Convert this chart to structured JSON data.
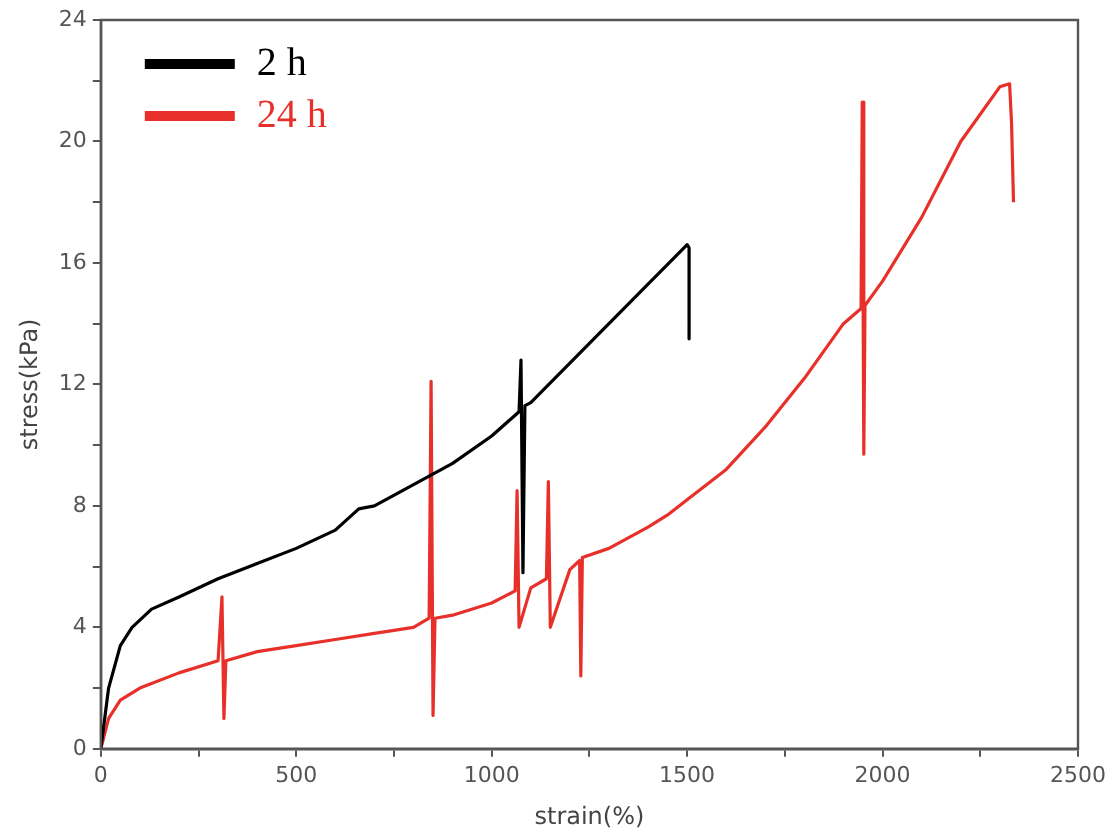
{
  "chart_data": {
    "type": "line",
    "xlabel": "strain(%)",
    "ylabel": "stress(kPa)",
    "xlim": [
      0,
      2500
    ],
    "ylim": [
      0,
      24
    ],
    "xticks": [
      0,
      {
        "value": 250,
        "label": null
      },
      500,
      {
        "value": 750,
        "label": null
      },
      1000,
      {
        "value": 1250,
        "label": null
      },
      1500,
      {
        "value": 1750,
        "label": null
      },
      2000,
      {
        "value": 2250,
        "label": null
      },
      2500
    ],
    "yticks": [
      0,
      {
        "value": 2,
        "label": null
      },
      4,
      {
        "value": 6,
        "label": null
      },
      8,
      {
        "value": 10,
        "label": null
      },
      12,
      {
        "value": 14,
        "label": null
      },
      16,
      {
        "value": 18,
        "label": null
      },
      20,
      {
        "value": 22,
        "label": null
      },
      24
    ],
    "grid": false,
    "legend": "top left",
    "marker": "none",
    "line_style": "solid",
    "series": [
      {
        "name": "2 h",
        "color": "#000000",
        "x": [
          0,
          20,
          50,
          80,
          130,
          200,
          300,
          400,
          500,
          600,
          660,
          700,
          800,
          900,
          1000,
          1070,
          1075,
          1080,
          1085,
          1100,
          1200,
          1300,
          1400,
          1500,
          1505,
          1505
        ],
        "values": [
          0,
          2,
          3.4,
          4.0,
          4.6,
          5.0,
          5.6,
          6.1,
          6.6,
          7.2,
          7.9,
          8.0,
          8.7,
          9.4,
          10.3,
          11.1,
          12.8,
          5.8,
          11.3,
          11.4,
          12.7,
          14.0,
          15.3,
          16.6,
          16.5,
          13.5
        ]
      },
      {
        "name": "24 h",
        "color": "#e8302a",
        "x": [
          0,
          20,
          50,
          100,
          200,
          300,
          310,
          315,
          320,
          400,
          500,
          600,
          700,
          800,
          840,
          845,
          850,
          855,
          900,
          1000,
          1060,
          1065,
          1070,
          1100,
          1140,
          1145,
          1150,
          1200,
          1225,
          1228,
          1232,
          1300,
          1400,
          1450,
          1500,
          1600,
          1700,
          1800,
          1900,
          1945,
          1948,
          1952,
          1955,
          2000,
          2100,
          2200,
          2300,
          2325,
          2330,
          2335
        ],
        "values": [
          0,
          1.0,
          1.6,
          2.0,
          2.5,
          2.9,
          5.0,
          1.0,
          2.9,
          3.2,
          3.4,
          3.6,
          3.8,
          4.0,
          4.3,
          12.1,
          1.1,
          4.3,
          4.4,
          4.8,
          5.2,
          8.5,
          4.0,
          5.3,
          5.6,
          8.8,
          4.0,
          5.9,
          6.2,
          2.4,
          6.3,
          6.6,
          7.3,
          7.7,
          8.2,
          9.2,
          10.6,
          12.2,
          14.0,
          14.5,
          21.3,
          9.7,
          14.6,
          15.4,
          17.5,
          20.0,
          21.8,
          21.9,
          20.6,
          18.0
        ]
      }
    ]
  }
}
